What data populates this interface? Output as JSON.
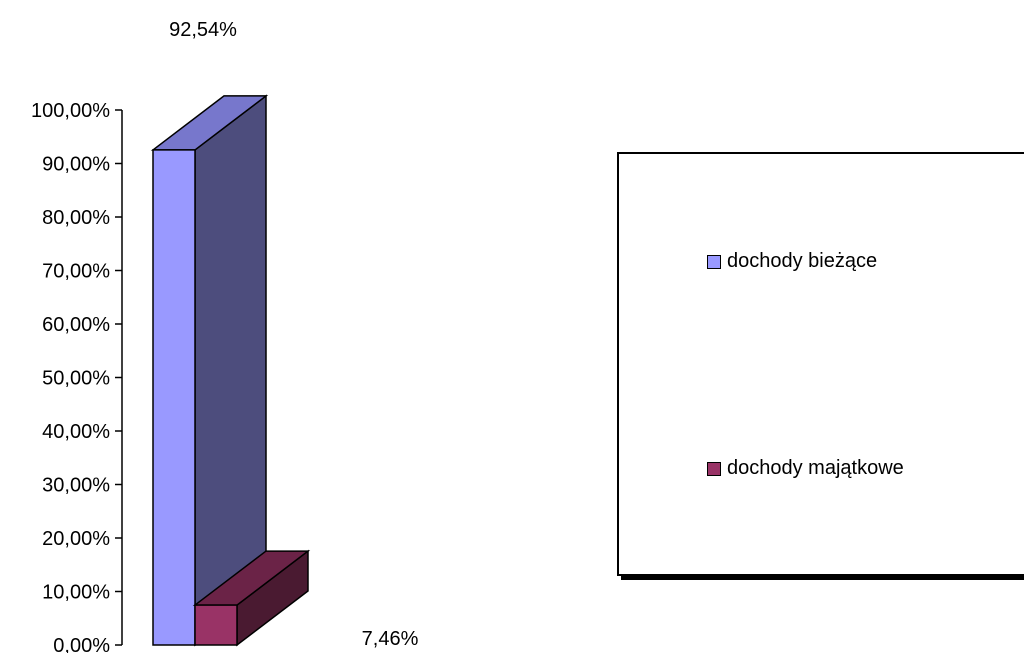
{
  "chart_data": {
    "type": "bar",
    "series": [
      {
        "name": "dochody bieżące",
        "values": [
          92.54
        ],
        "label": "92,54%",
        "color": "#9999ff",
        "top_color": "#7777cc",
        "side_color": "#4d4d7d"
      },
      {
        "name": "dochody majątkowe",
        "values": [
          7.46
        ],
        "label": "7,46%",
        "color": "#993366",
        "top_color": "#6b2347",
        "side_color": "#4a1a31"
      }
    ],
    "ylim": [
      0,
      100
    ],
    "yticks": [
      "0,00%",
      "10,00%",
      "20,00%",
      "30,00%",
      "40,00%",
      "50,00%",
      "60,00%",
      "70,00%",
      "80,00%",
      "90,00%",
      "100,00%"
    ],
    "grid": false,
    "legend": "right",
    "three_d": true
  }
}
